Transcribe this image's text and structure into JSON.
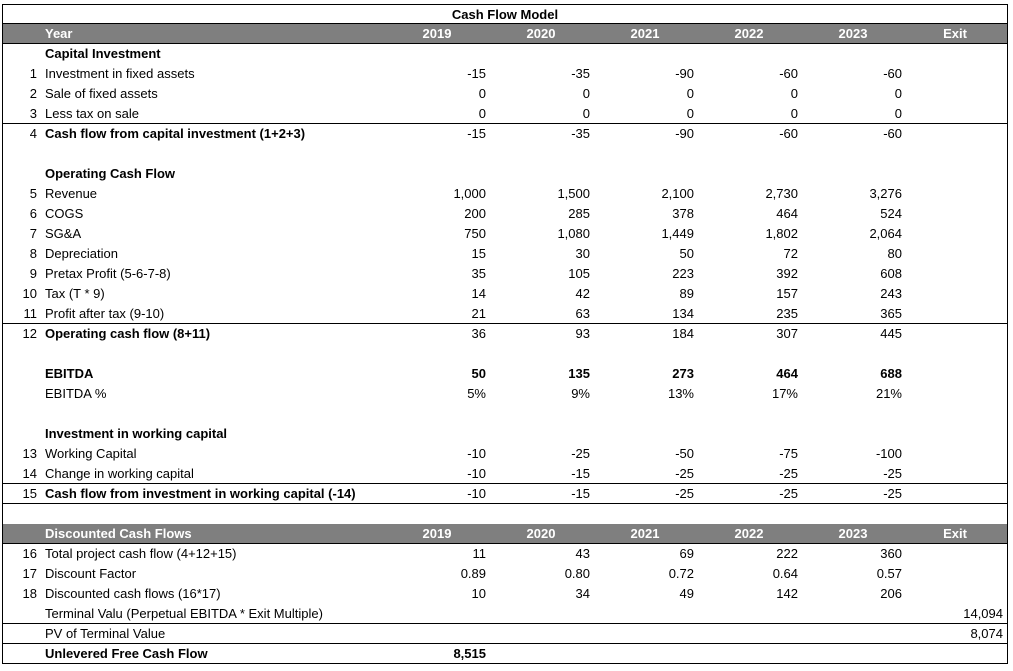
{
  "title": "Cash Flow Model",
  "header1": {
    "label": "Year",
    "years": [
      "2019",
      "2020",
      "2021",
      "2022",
      "2023",
      "Exit"
    ]
  },
  "capital": {
    "heading": "Capital Investment",
    "rows": [
      {
        "num": "1",
        "label": "Investment in fixed assets",
        "values": [
          "-15",
          "-35",
          "-90",
          "-60",
          "-60"
        ]
      },
      {
        "num": "2",
        "label": "Sale of fixed assets",
        "values": [
          "0",
          "0",
          "0",
          "0",
          "0"
        ]
      },
      {
        "num": "3",
        "label": "Less tax on sale",
        "values": [
          "0",
          "0",
          "0",
          "0",
          "0"
        ]
      },
      {
        "num": "4",
        "label": "Cash flow from capital investment (1+2+3)",
        "values": [
          "-15",
          "-35",
          "-90",
          "-60",
          "-60"
        ]
      }
    ]
  },
  "operating": {
    "heading": "Operating Cash Flow",
    "rows": [
      {
        "num": "5",
        "label": "Revenue",
        "values": [
          "1,000",
          "1,500",
          "2,100",
          "2,730",
          "3,276"
        ]
      },
      {
        "num": "6",
        "label": "COGS",
        "values": [
          "200",
          "285",
          "378",
          "464",
          "524"
        ]
      },
      {
        "num": "7",
        "label": "SG&A",
        "values": [
          "750",
          "1,080",
          "1,449",
          "1,802",
          "2,064"
        ]
      },
      {
        "num": "8",
        "label": "Depreciation",
        "values": [
          "15",
          "30",
          "50",
          "72",
          "80"
        ]
      },
      {
        "num": "9",
        "label": "Pretax Profit (5-6-7-8)",
        "values": [
          "35",
          "105",
          "223",
          "392",
          "608"
        ]
      },
      {
        "num": "10",
        "label": "Tax (T * 9)",
        "values": [
          "14",
          "42",
          "89",
          "157",
          "243"
        ]
      },
      {
        "num": "11",
        "label": "Profit after tax (9-10)",
        "values": [
          "21",
          "63",
          "134",
          "235",
          "365"
        ]
      },
      {
        "num": "12",
        "label": "Operating cash flow (8+11)",
        "values": [
          "36",
          "93",
          "184",
          "307",
          "445"
        ]
      }
    ]
  },
  "ebitda": {
    "label": "EBITDA",
    "values": [
      "50",
      "135",
      "273",
      "464",
      "688"
    ],
    "pct_label": "EBITDA %",
    "pct_values": [
      "5%",
      "9%",
      "13%",
      "17%",
      "21%"
    ]
  },
  "working": {
    "heading": "Investment in working capital",
    "rows": [
      {
        "num": "13",
        "label": "Working Capital",
        "values": [
          "-10",
          "-25",
          "-50",
          "-75",
          "-100"
        ]
      },
      {
        "num": "14",
        "label": "Change in working capital",
        "values": [
          "-10",
          "-15",
          "-25",
          "-25",
          "-25"
        ]
      },
      {
        "num": "15",
        "label": "Cash flow from investment in working capital (-14)",
        "values": [
          "-10",
          "-15",
          "-25",
          "-25",
          "-25"
        ]
      }
    ]
  },
  "header2": {
    "label": "Discounted Cash Flows",
    "years": [
      "2019",
      "2020",
      "2021",
      "2022",
      "2023",
      "Exit"
    ]
  },
  "discounted": {
    "rows": [
      {
        "num": "16",
        "label": "Total project cash flow (4+12+15)",
        "values": [
          "11",
          "43",
          "69",
          "222",
          "360"
        ]
      },
      {
        "num": "17",
        "label": "Discount Factor",
        "values": [
          "0.89",
          "0.80",
          "0.72",
          "0.64",
          "0.57"
        ]
      },
      {
        "num": "18",
        "label": "Discounted cash flows (16*17)",
        "values": [
          "10",
          "34",
          "49",
          "142",
          "206"
        ]
      }
    ],
    "terminal_label": "Terminal Valu (Perpetual EBITDA * Exit Multiple)",
    "terminal_value": "14,094",
    "pv_label": "PV of Terminal Value",
    "pv_value": "8,074",
    "ufcf_label": "Unlevered Free Cash Flow",
    "ufcf_value": "8,515"
  }
}
